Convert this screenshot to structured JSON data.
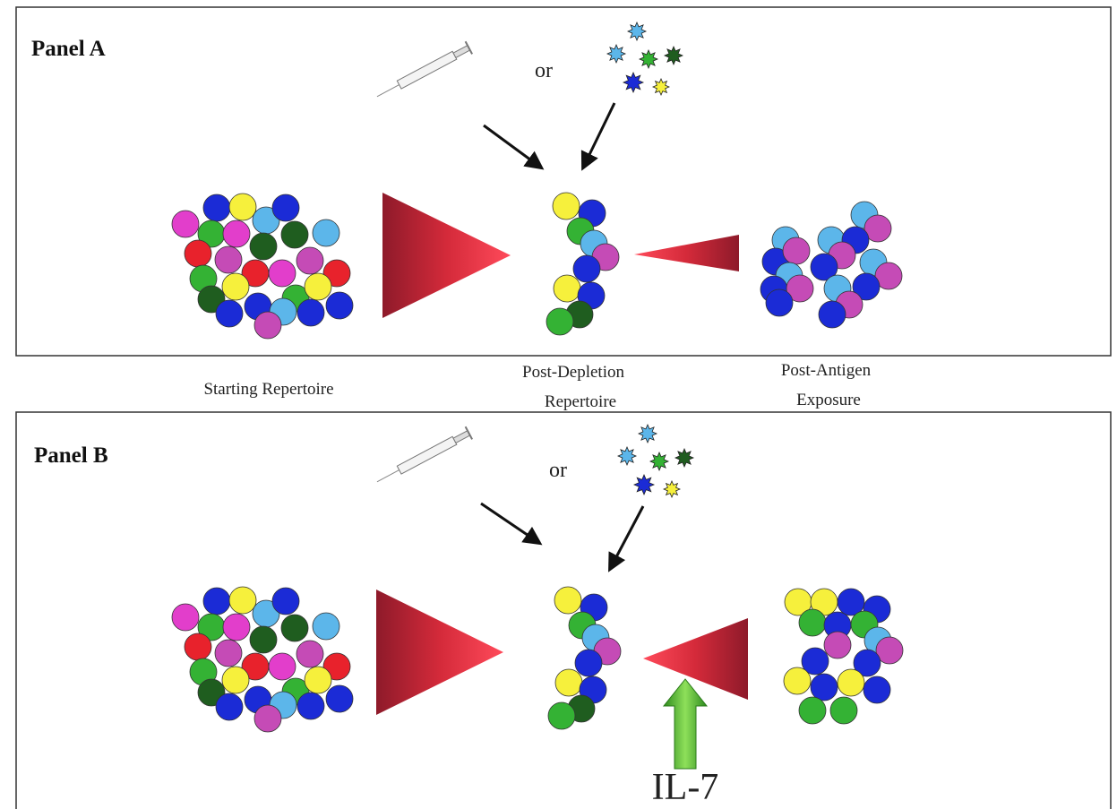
{
  "panel_a": {
    "title": "Panel A",
    "or": "or"
  },
  "captions": {
    "starting": "Starting Repertoire",
    "post_depletion": [
      "Post-Depletion",
      "Repertoire"
    ],
    "post_antigen": [
      "Post-Antigen",
      "Exposure"
    ]
  },
  "panel_b": {
    "title": "Panel B",
    "or": "or",
    "cytokine": "IL-7"
  }
}
